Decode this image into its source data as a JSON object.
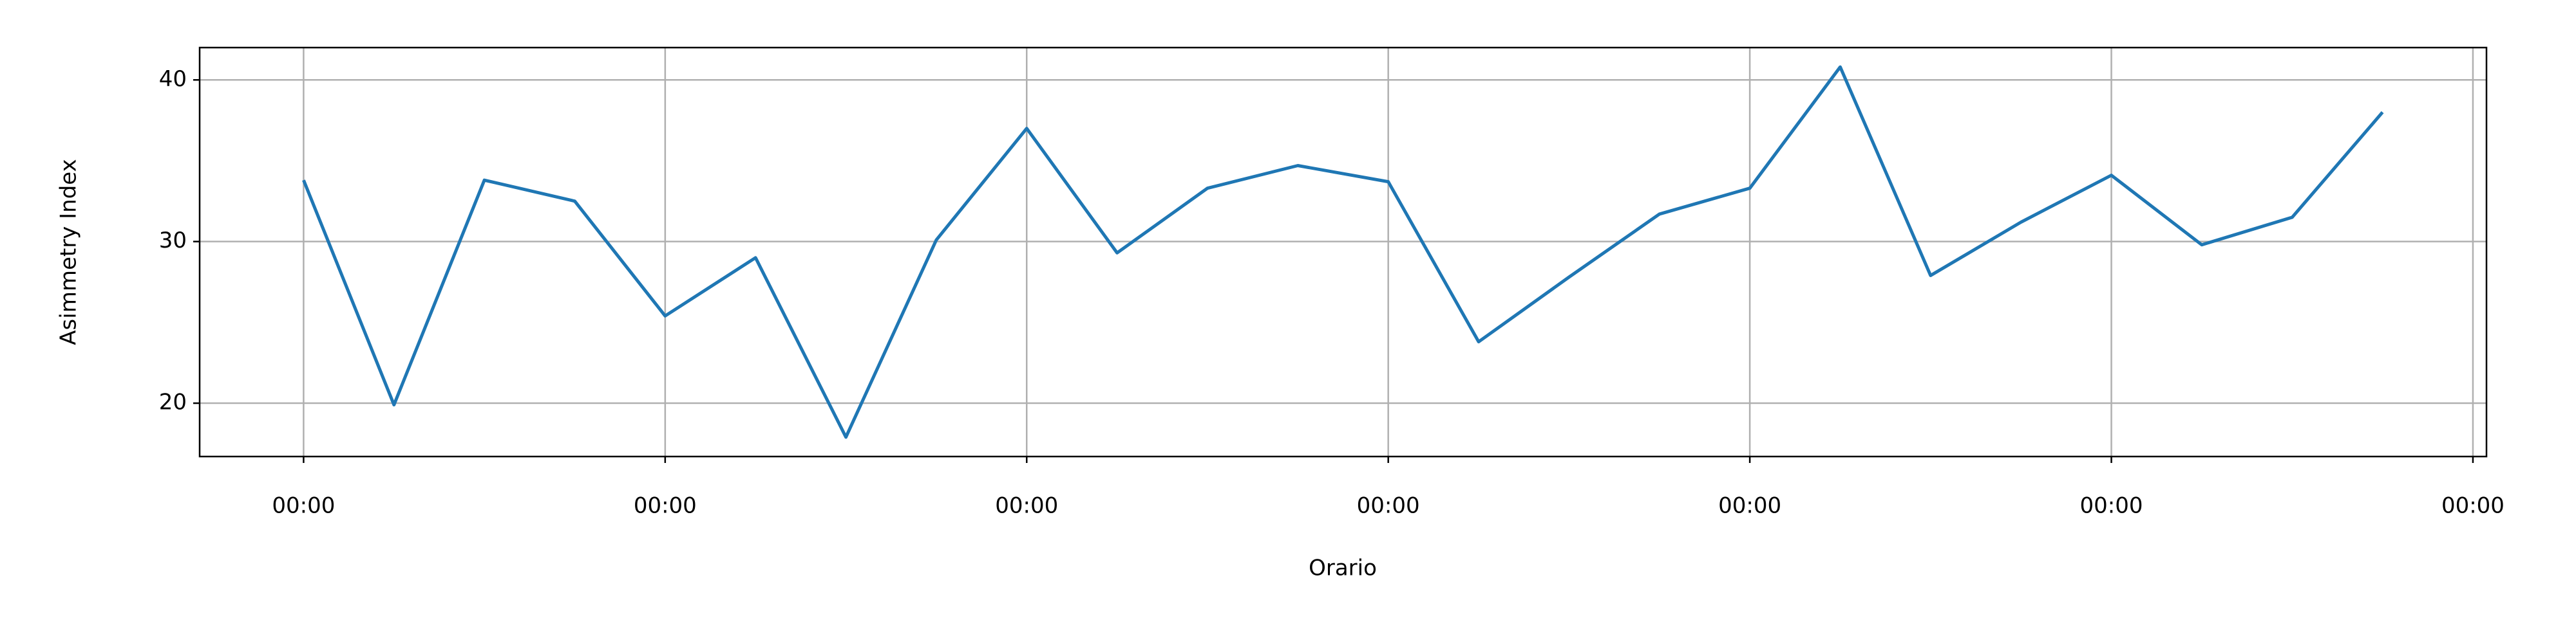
{
  "chart_data": {
    "type": "line",
    "x_label": "Orario",
    "y_label": "Asimmetry Index",
    "x": [
      0,
      6,
      12,
      18,
      24,
      30,
      36,
      42,
      48,
      54,
      60,
      66,
      72,
      78,
      84,
      90,
      96,
      102,
      108,
      114,
      120,
      126,
      132,
      138
    ],
    "series": [
      {
        "name": "Asimmetry Index",
        "color": "#1f77b4",
        "values": [
          33.8,
          19.9,
          33.8,
          32.5,
          25.4,
          29.0,
          17.9,
          30.1,
          37.0,
          29.3,
          33.3,
          34.7,
          33.7,
          23.8,
          27.8,
          31.7,
          33.3,
          40.8,
          27.9,
          31.2,
          34.1,
          29.8,
          31.5,
          38.0
        ]
      }
    ],
    "xlim": [
      -6.9,
      144.9
    ],
    "xticks": [
      {
        "value": 0,
        "label": "00:00"
      },
      {
        "value": 24,
        "label": "00:00"
      },
      {
        "value": 48,
        "label": "00:00"
      },
      {
        "value": 72,
        "label": "00:00"
      },
      {
        "value": 96,
        "label": "00:00"
      },
      {
        "value": 120,
        "label": "00:00"
      },
      {
        "value": 144,
        "label": "00:00"
      }
    ],
    "ylim": [
      16.7,
      42.0
    ],
    "yticks": [
      20,
      30,
      40
    ],
    "grid": true
  }
}
